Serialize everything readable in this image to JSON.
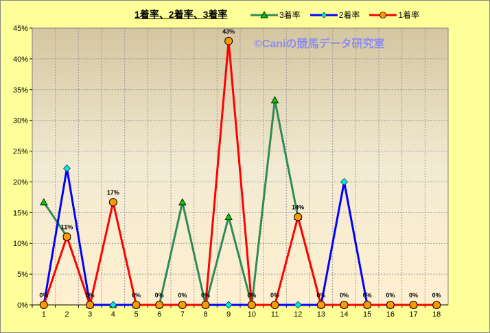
{
  "chart_data": {
    "type": "line",
    "title": "1着率、2着率、3着率",
    "categories": [
      "1",
      "2",
      "3",
      "4",
      "5",
      "6",
      "7",
      "8",
      "9",
      "10",
      "11",
      "12",
      "13",
      "14",
      "15",
      "16",
      "17",
      "18"
    ],
    "ylim": [
      0,
      45
    ],
    "yticks": [
      "0%",
      "5%",
      "10%",
      "15%",
      "20%",
      "25%",
      "30%",
      "35%",
      "40%",
      "45%"
    ],
    "grid": true,
    "legend_position": "top",
    "series": [
      {
        "name": "3着率",
        "color": "#2e8b57",
        "marker": "triangle",
        "marker_color": "#00cc00",
        "values": [
          16.7,
          11.1,
          0,
          0,
          0,
          0,
          16.7,
          0,
          14.3,
          0,
          33.3,
          14.3,
          0,
          0,
          0,
          0,
          0,
          0
        ]
      },
      {
        "name": "2着率",
        "color": "#0000ff",
        "marker": "diamond",
        "marker_color": "#00e5ee",
        "values": [
          0,
          22.2,
          0,
          0,
          0,
          0,
          0,
          0,
          0,
          0,
          0,
          0,
          0,
          20,
          0,
          0,
          0,
          0
        ]
      },
      {
        "name": "1着率",
        "color": "#ff0000",
        "marker": "circle",
        "marker_color": "#ff9900",
        "values": [
          0,
          11.1,
          0,
          16.7,
          0,
          0,
          0,
          0,
          42.9,
          0,
          0,
          14.3,
          0,
          0,
          0,
          0,
          0,
          0
        ],
        "data_labels": [
          "0%",
          "11%",
          "0%",
          "17%",
          "0%",
          "0%",
          "0%",
          "0%",
          "43%",
          "0%",
          "0%",
          "14%",
          "0%",
          "0%",
          "0%",
          "0%",
          "0%",
          "0%"
        ]
      }
    ],
    "watermark": "©Caniの競馬データ研究室"
  }
}
